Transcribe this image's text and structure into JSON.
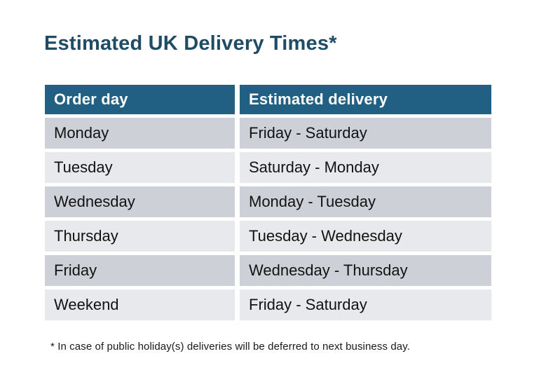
{
  "title": "Estimated UK Delivery Times*",
  "table": {
    "columns": [
      "Order day",
      "Estimated delivery"
    ],
    "rows": [
      [
        "Monday",
        "Friday - Saturday"
      ],
      [
        "Tuesday",
        "Saturday - Monday"
      ],
      [
        "Wednesday",
        "Monday - Tuesday"
      ],
      [
        "Thursday",
        "Tuesday - Wednesday"
      ],
      [
        "Friday",
        "Wednesday - Thursday"
      ],
      [
        "Weekend",
        "Friday - Saturday"
      ]
    ]
  },
  "footnote": "* In case of public holiday(s) deliveries will be deferred to next business day.",
  "colors": {
    "title_color": "#1d4c64",
    "header_bg": "#216083",
    "header_text": "#ffffff",
    "row_odd_bg": "#cdd1d7",
    "row_even_bg": "#e7e9ec",
    "body_text": "#121212"
  }
}
